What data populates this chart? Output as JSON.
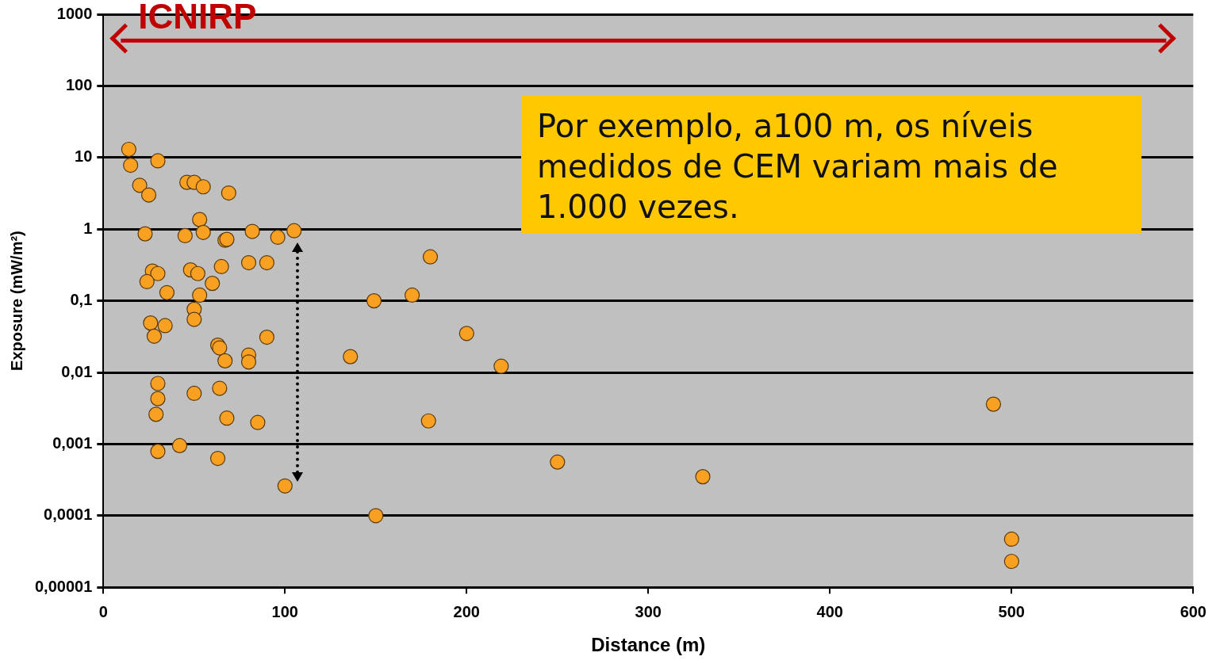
{
  "chart_data": {
    "type": "scatter",
    "xlabel": "Distance (m)",
    "ylabel": "Exposure (mW/m²)",
    "log": "y",
    "grid": "y",
    "marker": "circle",
    "legend": false,
    "xlim": [
      0,
      600
    ],
    "xticks": [
      0,
      100,
      200,
      300,
      400,
      500,
      600
    ],
    "ylim": [
      1e-05,
      1000
    ],
    "yticks": [
      {
        "value": 1e-05,
        "label": "0,00001"
      },
      {
        "value": 0.0001,
        "label": "0,0001"
      },
      {
        "value": 0.001,
        "label": "0,001"
      },
      {
        "value": 0.01,
        "label": "0,01"
      },
      {
        "value": 0.1,
        "label": "0,1"
      },
      {
        "value": 1,
        "label": "1"
      },
      {
        "value": 10,
        "label": "10"
      },
      {
        "value": 100,
        "label": "100"
      },
      {
        "value": 1000,
        "label": "1000"
      }
    ],
    "ref_lines": [
      {
        "axis": "y",
        "value": 430,
        "label": "ICNIRP",
        "color": "#c00000"
      }
    ],
    "annotations": [
      "Por exemplo, a100 m, os níveis medidos de CEM variam mais de 1.000 vezes."
    ],
    "series": [
      {
        "color": "#f7a021",
        "x": [
          14,
          15,
          30,
          20,
          25,
          46,
          50,
          55,
          69,
          53,
          55,
          23,
          45,
          67,
          68,
          82,
          96,
          105,
          80,
          90,
          65,
          48,
          52,
          27,
          30,
          24,
          60,
          35,
          53,
          50,
          50,
          26,
          34,
          28,
          63,
          64,
          90,
          80,
          80,
          67,
          30,
          50,
          64,
          30,
          29,
          68,
          85,
          42,
          30,
          63,
          100,
          149,
          170,
          180,
          136,
          200,
          219,
          179,
          150,
          250,
          330,
          490,
          500,
          500
        ],
        "values": [
          13,
          7.8,
          9,
          4.1,
          3.0,
          4.5,
          4.5,
          3.9,
          3.2,
          1.36,
          0.9,
          0.86,
          0.81,
          0.7,
          0.72,
          0.93,
          0.77,
          0.95,
          0.34,
          0.34,
          0.3,
          0.27,
          0.24,
          0.26,
          0.24,
          0.185,
          0.175,
          0.13,
          0.12,
          0.076,
          0.055,
          0.049,
          0.045,
          0.032,
          0.024,
          0.022,
          0.031,
          0.0175,
          0.014,
          0.0145,
          0.007,
          0.0051,
          0.006,
          0.0043,
          0.0026,
          0.0023,
          0.002,
          0.00095,
          0.00079,
          0.00063,
          0.00026,
          0.1,
          0.12,
          0.41,
          0.0166,
          0.035,
          0.0122,
          0.0021,
          0.0001,
          0.00056,
          0.00035,
          0.0036,
          4.7e-05,
          2.3e-05
        ]
      }
    ]
  }
}
